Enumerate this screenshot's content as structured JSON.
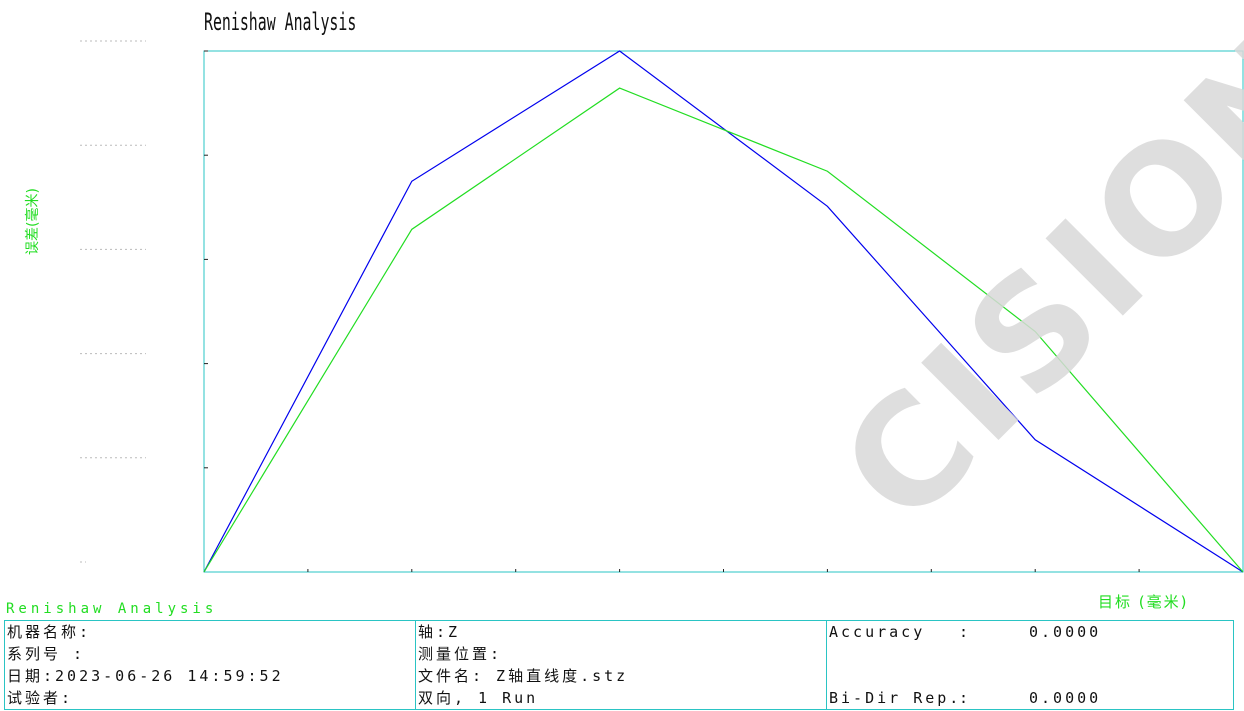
{
  "chart_data": {
    "type": "line",
    "title": "Renishaw Analysis",
    "xlabel": "目标 (毫米)",
    "ylabel": "误差(毫米)",
    "x": [
      0,
      1,
      2,
      3,
      4,
      5
    ],
    "xlim": [
      0,
      5
    ],
    "ylim": [
      0,
      5.2
    ],
    "grid": false,
    "series": [
      {
        "color": "#0000ee",
        "values": [
          0,
          3.9,
          5.2,
          3.65,
          1.32,
          0
        ]
      },
      {
        "color": "#22dd22",
        "values": [
          0,
          3.42,
          4.83,
          4.0,
          2.4,
          0
        ]
      }
    ]
  },
  "footer": {
    "title": "Renishaw Analysis",
    "col1": [
      "机器名称:",
      "系列号 :",
      "日期:2023-06-26 14:59:52",
      "试验者:"
    ],
    "col2": [
      "轴:Z",
      "测量位置:",
      "文件名: Z轴直线度.stz",
      "双向, 1 Run"
    ],
    "accuracy_label": "Accuracy",
    "accuracy_sep": ":",
    "accuracy_value": "0.0000",
    "bidir_label": "Bi-Dir Rep.",
    "bidir_sep": ":",
    "bidir_value": "0.0000"
  },
  "watermark": "CISION",
  "colors": {
    "frame": "#2ac4c4",
    "label_green": "#22dd22"
  }
}
